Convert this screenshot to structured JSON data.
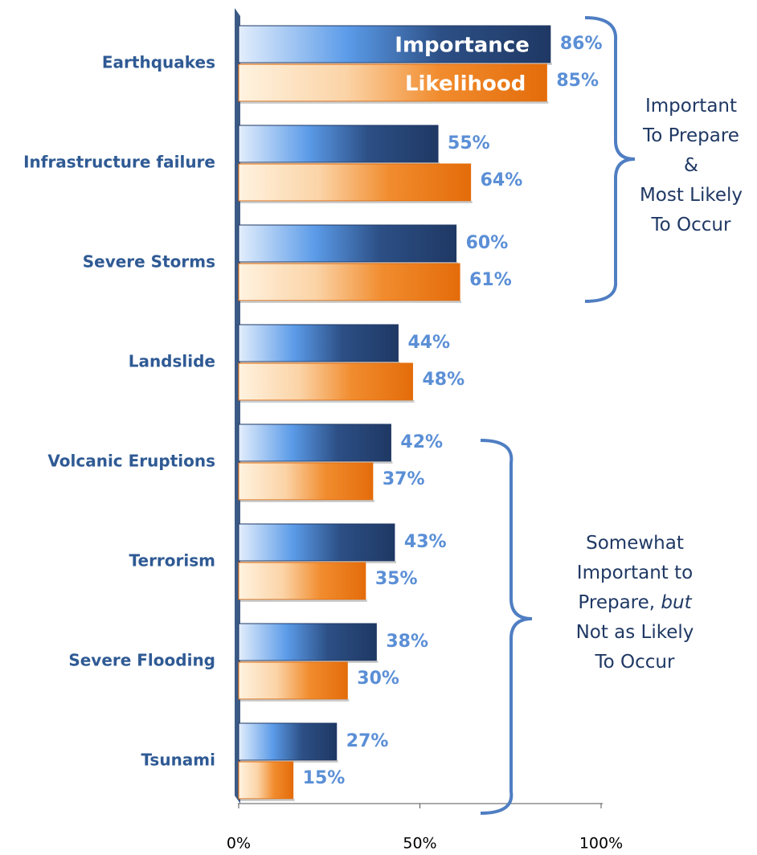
{
  "chart_data": {
    "type": "bar",
    "orientation": "horizontal",
    "categories": [
      "Earthquakes",
      "Infrastructure failure",
      "Severe Storms",
      "Landslide",
      "Volcanic Eruptions",
      "Terrorism",
      "Severe Flooding",
      "Tsunami"
    ],
    "series": [
      {
        "name": "Importance",
        "color": "#1f3864",
        "values": [
          86,
          55,
          60,
          44,
          42,
          43,
          38,
          27
        ],
        "value_labels": [
          "86%",
          "55%",
          "60%",
          "44%",
          "42%",
          "43%",
          "38%",
          "27%"
        ]
      },
      {
        "name": "Likelihood",
        "color": "#e46c0a",
        "values": [
          85,
          64,
          61,
          48,
          37,
          35,
          30,
          15
        ],
        "value_labels": [
          "85%",
          "64%",
          "61%",
          "48%",
          "37%",
          "35%",
          "30%",
          "15%"
        ]
      }
    ],
    "xlim": [
      0,
      100
    ],
    "xticks": [
      {
        "value": 0,
        "label": "0%"
      },
      {
        "value": 50,
        "label": "50%"
      },
      {
        "value": 100,
        "label": "100%"
      }
    ],
    "annotations": [
      {
        "lines": [
          [
            {
              "text": "Important"
            }
          ],
          [
            {
              "text": "To Prepare"
            }
          ],
          [
            {
              "text": "&"
            }
          ],
          [
            {
              "text": "Most Likely"
            }
          ],
          [
            {
              "text": "To Occur"
            }
          ]
        ]
      },
      {
        "lines": [
          [
            {
              "text": "Somewhat"
            }
          ],
          [
            {
              "text": "Important to"
            }
          ],
          [
            {
              "text": "Prepare, "
            },
            {
              "text": "but",
              "style": "italic"
            }
          ],
          [
            {
              "text": "Not as Likely"
            }
          ],
          [
            {
              "text": "To Occur"
            }
          ]
        ]
      }
    ]
  }
}
